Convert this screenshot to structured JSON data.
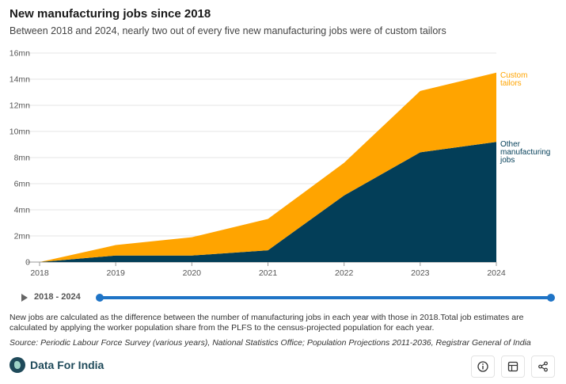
{
  "header": {
    "title": "New manufacturing jobs since 2018",
    "subtitle": "Between 2018 and 2024, nearly two out of every five new manufacturing jobs were of custom tailors"
  },
  "chart_data": {
    "type": "area",
    "stacked": true,
    "x": [
      "2018",
      "2019",
      "2020",
      "2021",
      "2022",
      "2023",
      "2024"
    ],
    "y_ticks": [
      "0",
      "2mn",
      "4mn",
      "6mn",
      "8mn",
      "10mn",
      "12mn",
      "14mn",
      "16mn"
    ],
    "ylim": [
      0,
      16
    ],
    "grid": true,
    "series": [
      {
        "name": "Other manufacturing jobs",
        "values": [
          0,
          0.5,
          0.5,
          0.9,
          5.1,
          8.4,
          9.2
        ],
        "color": "#033e58"
      },
      {
        "name": "Custom tailors",
        "values": [
          0,
          0.8,
          1.4,
          2.4,
          2.5,
          4.7,
          5.3
        ],
        "color": "#ffa400"
      }
    ],
    "legend": "inline-right"
  },
  "timeline": {
    "range_label": "2018 - 2024",
    "start": 0.0,
    "end": 1.0
  },
  "note": "New jobs are calculated as the difference between the number of manufacturing jobs in each year with those in 2018.Total job estimates are calculated by applying the worker population share from the PLFS to the census-projected population for each year.",
  "source": "Source: Periodic Labour Force Survey (various years), National Statistics Office; Population Projections 2011-2036, Registrar General of India",
  "footer": {
    "brand": "Data For India",
    "icons": [
      "info-icon",
      "table-icon",
      "share-icon"
    ]
  }
}
